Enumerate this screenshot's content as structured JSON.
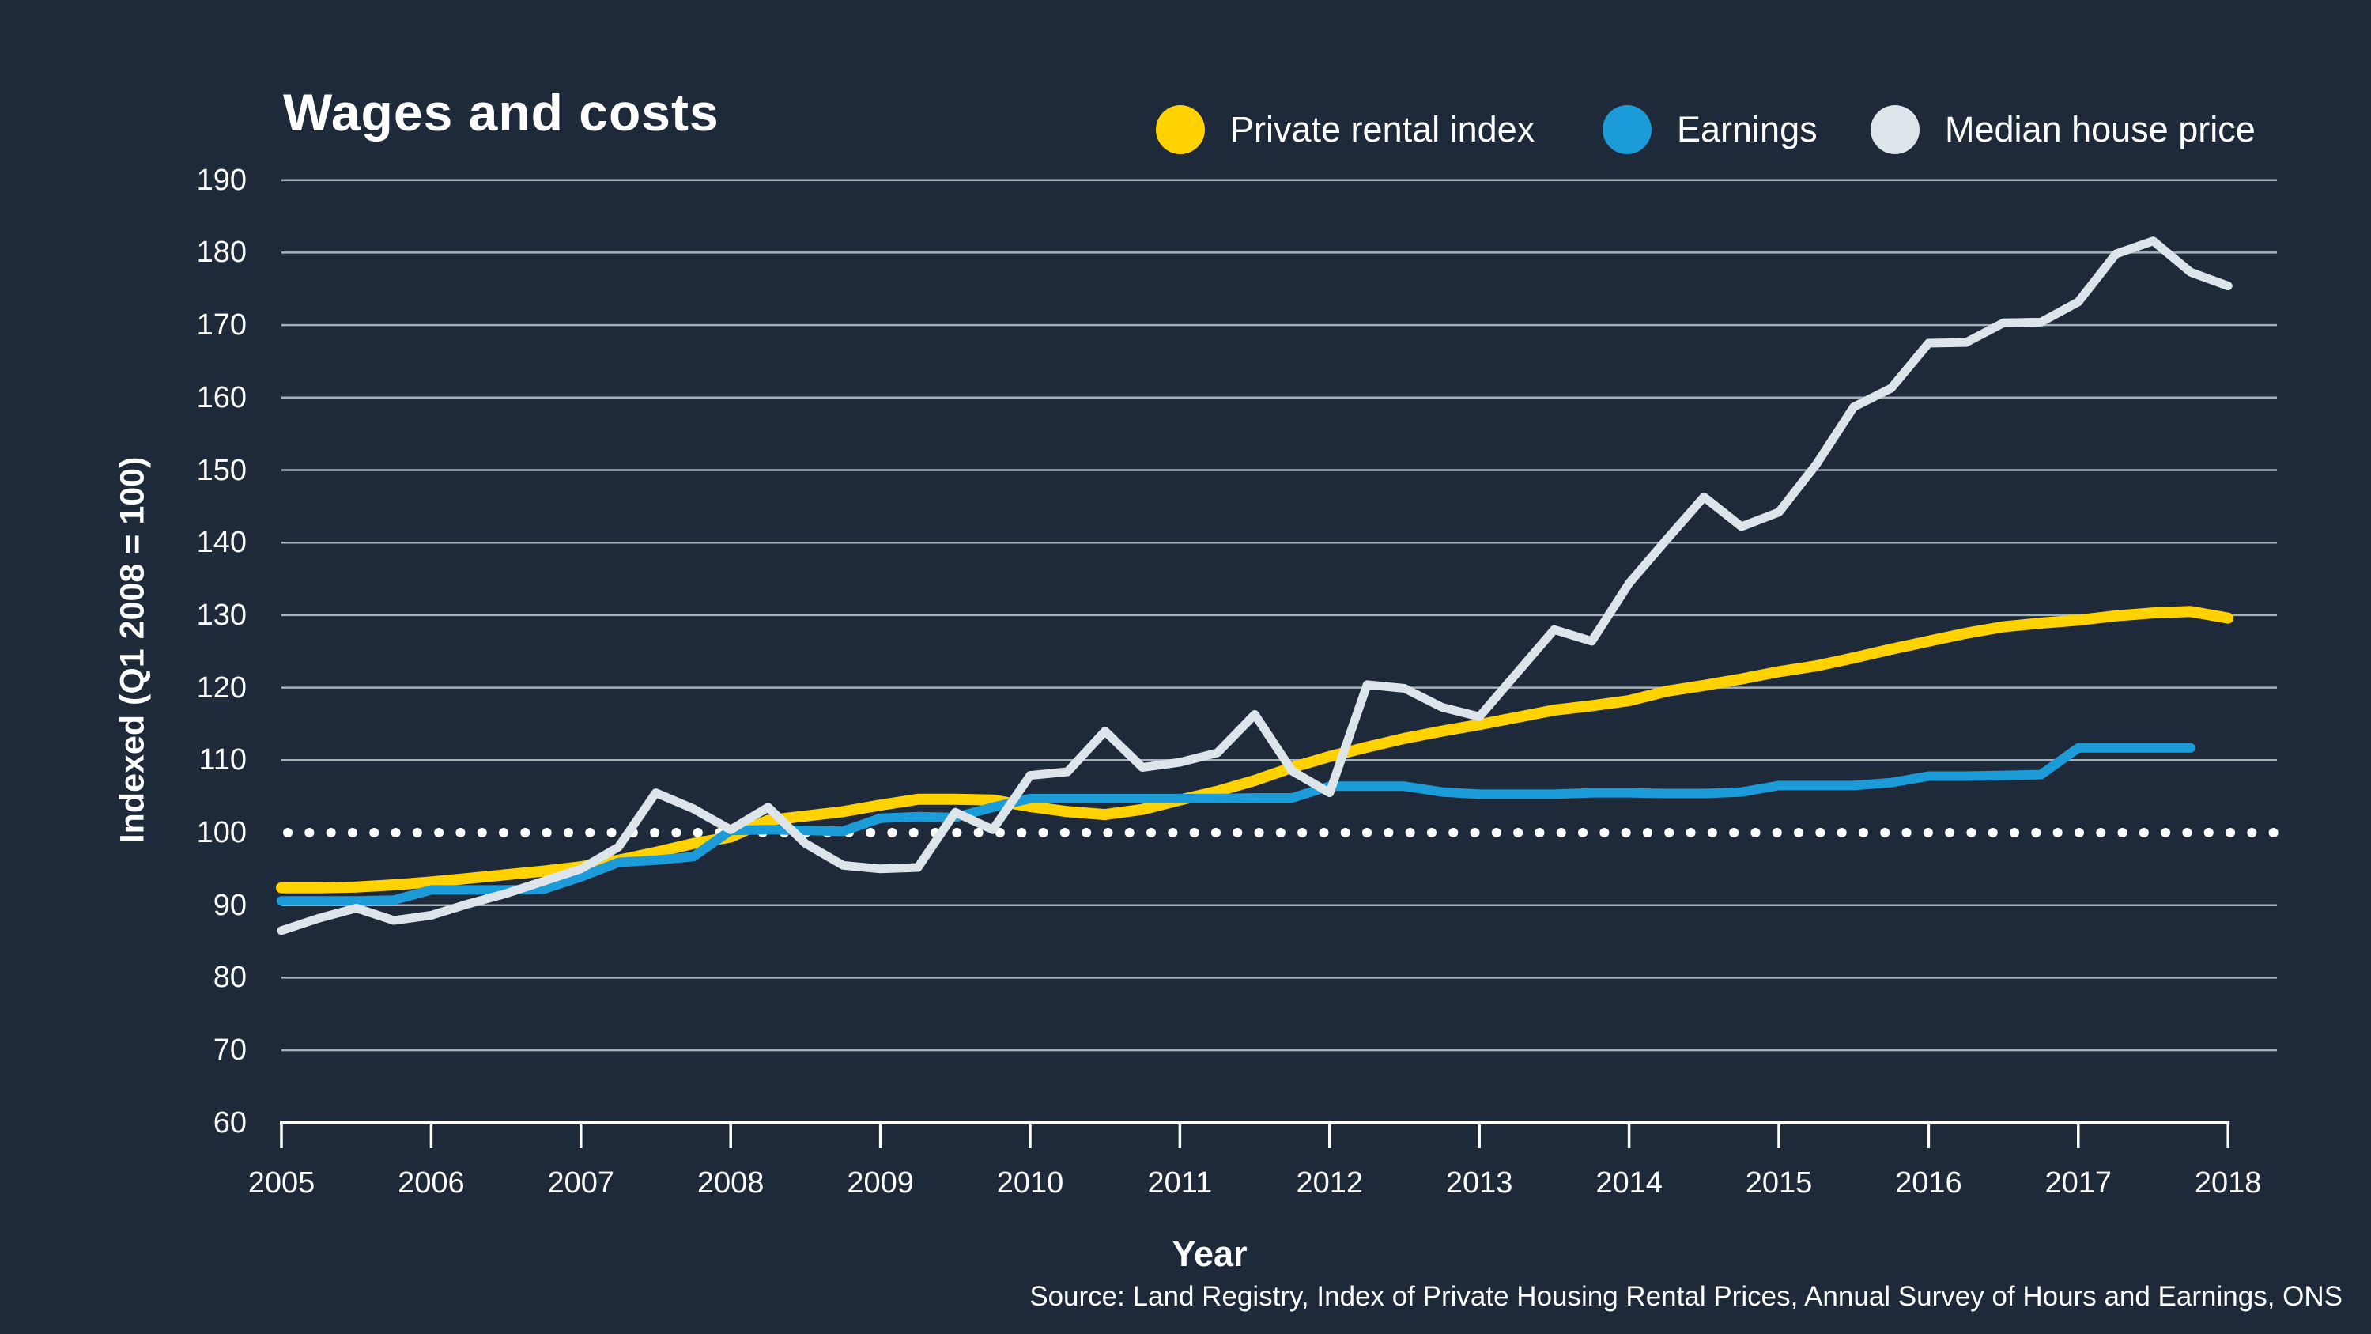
{
  "title": "Wages and costs",
  "legend": [
    {
      "label": "Private rental index",
      "color": "#FFD200"
    },
    {
      "label": "Earnings",
      "color": "#1B9CD8"
    },
    {
      "label": "Median house price",
      "color": "#DDE4EA"
    }
  ],
  "y_axis": {
    "label": "Indexed (Q1 2008 = 100)",
    "ticks": [
      190,
      180,
      170,
      160,
      150,
      140,
      130,
      120,
      110,
      100,
      90,
      80,
      70,
      60
    ]
  },
  "x_axis": {
    "label": "Year",
    "ticks": [
      2005,
      2006,
      2007,
      2008,
      2009,
      2010,
      2011,
      2012,
      2013,
      2014,
      2015,
      2016,
      2017,
      2018
    ]
  },
  "source": "Source: Land Registry, Index of Private Housing Rental Prices, Annual Survey of Hours and Earnings, ONS",
  "colors": {
    "background": "#1E2A3A",
    "grid": "#BFC9D2",
    "baseline_dots": "#FFFFFF",
    "axis": "#FFFFFF"
  },
  "chart_data": {
    "type": "line",
    "title": "Wages and costs",
    "xlabel": "Year",
    "ylabel": "Indexed (Q1 2008 = 100)",
    "xlim": [
      2005,
      2018
    ],
    "ylim": [
      60,
      190
    ],
    "grid": "horizontal",
    "legend_position": "top-right",
    "baseline": {
      "value": 100,
      "style": "dotted"
    },
    "x_start": 2005,
    "x_step": 0.25,
    "series": [
      {
        "name": "Private rental index",
        "color": "#FFD200",
        "stroke_width": 14,
        "values": [
          92.4,
          92.4,
          92.5,
          92.8,
          93.2,
          93.7,
          94.2,
          94.7,
          95.3,
          96.2,
          97.3,
          98.5,
          99.4,
          101.7,
          102.3,
          102.9,
          103.8,
          104.6,
          104.6,
          104.5,
          103.6,
          102.9,
          102.5,
          103.2,
          104.5,
          105.7,
          107.2,
          109.0,
          110.5,
          111.8,
          113.0,
          114.0,
          114.9,
          115.9,
          116.9,
          117.5,
          118.2,
          119.5,
          120.3,
          121.2,
          122.2,
          123.0,
          124.1,
          125.3,
          126.4,
          127.5,
          128.4,
          128.9,
          129.3,
          129.9,
          130.3,
          130.5,
          129.6
        ]
      },
      {
        "name": "Earnings",
        "color": "#1B9CD8",
        "stroke_width": 12,
        "values": [
          90.6,
          90.6,
          90.6,
          90.7,
          92.1,
          92.1,
          92.1,
          92.2,
          93.9,
          95.9,
          96.2,
          96.7,
          100.3,
          100.4,
          100.3,
          100.2,
          102.0,
          102.2,
          102.1,
          103.5,
          104.7,
          104.7,
          104.7,
          104.7,
          104.7,
          104.7,
          104.8,
          104.8,
          106.4,
          106.4,
          106.4,
          105.6,
          105.3,
          105.3,
          105.3,
          105.5,
          105.5,
          105.4,
          105.4,
          105.6,
          106.5,
          106.5,
          106.5,
          106.9,
          107.8,
          107.8,
          107.9,
          108.0,
          111.7,
          111.7,
          111.7,
          111.7
        ]
      },
      {
        "name": "Median house price",
        "color": "#DDE4EA",
        "stroke_width": 11,
        "values": [
          86.5,
          88.2,
          89.6,
          87.9,
          88.6,
          90.2,
          91.6,
          93.3,
          95.0,
          98.0,
          105.5,
          103.3,
          100.4,
          103.5,
          98.5,
          95.5,
          95.0,
          95.2,
          102.8,
          100.4,
          107.9,
          108.4,
          114.0,
          109.0,
          109.7,
          111.0,
          116.3,
          108.5,
          105.5,
          120.4,
          119.9,
          117.3,
          116.0,
          122.0,
          128.0,
          126.4,
          134.4,
          140.4,
          146.3,
          142.2,
          144.2,
          150.8,
          158.7,
          161.3,
          167.5,
          167.6,
          170.3,
          170.4,
          173.2,
          179.8,
          181.6,
          177.3,
          175.4
        ]
      }
    ]
  }
}
